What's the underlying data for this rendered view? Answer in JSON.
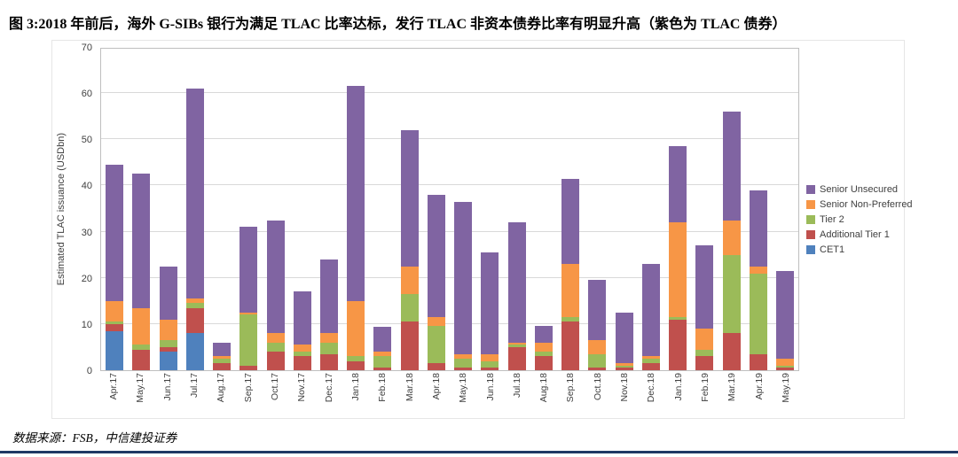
{
  "figure": {
    "title": "图 3:2018 年前后，海外 G-SIBs 银行为满足 TLAC 比率达标，发行 TLAC 非资本债券比率有明显升高（紫色为 TLAC 债券）",
    "source": "数据来源：FSB，中信建投证券"
  },
  "chart_data": {
    "type": "bar",
    "stacked": true,
    "title": "",
    "xlabel": "",
    "ylabel": "Estimated TLAC issuance (USDbn)",
    "ylim": [
      0,
      70
    ],
    "yticks": [
      0,
      10,
      20,
      30,
      40,
      50,
      60,
      70
    ],
    "grid": true,
    "legend_position": "right",
    "legend": [
      "Senior Unsecured",
      "Senior Non-Preferred",
      "Tier 2",
      "Additional Tier 1",
      "CET1"
    ],
    "categories": [
      "Apr.17",
      "May.17",
      "Jun.17",
      "Jul.17",
      "Aug.17",
      "Sep.17",
      "Oct.17",
      "Nov.17",
      "Dec.17",
      "Jan.18",
      "Feb.18",
      "Mar.18",
      "Apr.18",
      "May.18",
      "Jun.18",
      "Jul.18",
      "Aug.18",
      "Sep.18",
      "Oct.18",
      "Nov.18",
      "Dec.18",
      "Jan.19",
      "Feb.19",
      "Mar.19",
      "Apr.19",
      "May.19"
    ],
    "series": [
      {
        "name": "CET1",
        "color": "#4F81BD",
        "values": [
          8.5,
          0,
          4,
          8,
          0,
          0,
          0,
          0,
          0,
          0,
          0,
          0,
          0,
          0,
          0,
          0,
          0,
          0,
          0,
          0,
          0,
          0,
          0,
          0,
          0,
          0
        ]
      },
      {
        "name": "Additional Tier 1",
        "color": "#C0504D",
        "values": [
          1.5,
          4.5,
          1,
          5.5,
          1.5,
          1,
          4,
          3,
          3.5,
          2,
          0.5,
          10.5,
          1.5,
          0.5,
          0.5,
          5,
          3,
          10.5,
          0.5,
          0.5,
          1.5,
          11,
          3,
          8,
          3.5,
          0.5
        ]
      },
      {
        "name": "Tier 2",
        "color": "#9BBB59",
        "values": [
          0.5,
          1,
          1.5,
          1,
          1,
          11,
          2,
          1,
          2.5,
          1,
          2.5,
          6,
          8,
          2,
          1.5,
          0.5,
          1,
          1,
          3,
          0.5,
          1,
          0.5,
          1.5,
          17,
          17.5,
          0.5
        ]
      },
      {
        "name": "Senior Non-Preferred",
        "color": "#F79646",
        "values": [
          4.5,
          8,
          4.5,
          1,
          0.5,
          0.5,
          2,
          1.5,
          2,
          12,
          1,
          6,
          2,
          1,
          1.5,
          0.5,
          2,
          11.5,
          3,
          0.5,
          0.5,
          20.5,
          4.5,
          7.5,
          1.5,
          1.5
        ]
      },
      {
        "name": "Senior Unsecured",
        "color": "#8064A2",
        "values": [
          29.5,
          29,
          11.5,
          45.5,
          3,
          18.5,
          24.5,
          11.5,
          16,
          46.5,
          5.5,
          29.5,
          26.5,
          33,
          22,
          26,
          3.5,
          18.5,
          13,
          11,
          20,
          16.5,
          18,
          23.5,
          16.5,
          19
        ]
      }
    ]
  }
}
